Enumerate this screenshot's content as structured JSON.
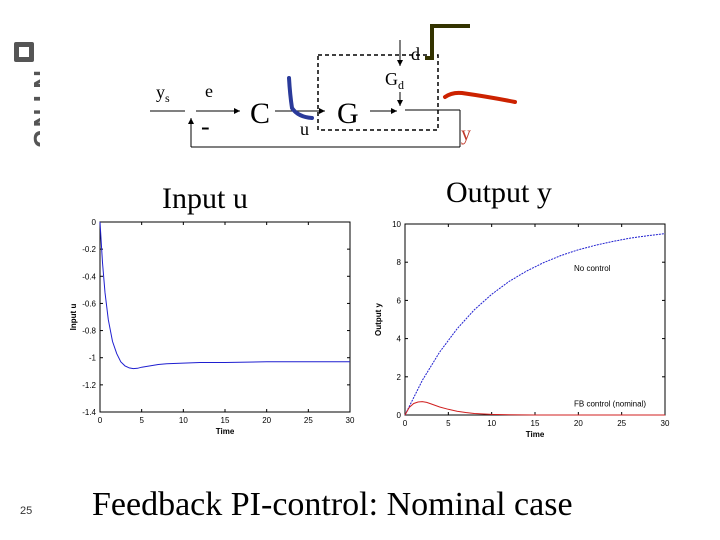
{
  "slide": {
    "number": "25",
    "title": "Feedback PI-control: Nominal case",
    "logo_text": "NTNU"
  },
  "diagram": {
    "ys": "y",
    "ys_sub": "s",
    "e": "e",
    "minus": "-",
    "controller": "C",
    "u": "u",
    "plant": "G",
    "disturbance_block": "G",
    "disturbance_block_sub": "d",
    "d": "d",
    "y": "y"
  },
  "panels": {
    "left_title": "Input u",
    "right_title": "Output y"
  },
  "chart_data": [
    {
      "type": "line",
      "xlabel": "Time",
      "ylabel": "Input u",
      "xlim": [
        0,
        30
      ],
      "ylim": [
        -1.4,
        0
      ],
      "xticks": [
        "0",
        "5",
        "10",
        "15",
        "20",
        "25",
        "30"
      ],
      "yticks": [
        "0",
        "-0.2",
        "-0.4",
        "-0.6",
        "-0.8",
        "-1",
        "-1.2",
        "-1.4"
      ],
      "series": [
        {
          "color": "#1f1fd0",
          "x": [
            0,
            0.3,
            0.6,
            1,
            1.5,
            2,
            2.5,
            3,
            3.5,
            4,
            4.5,
            5,
            6,
            7,
            8,
            10,
            12,
            15,
            20,
            25,
            30
          ],
          "y": [
            0,
            -0.3,
            -0.52,
            -0.72,
            -0.88,
            -0.97,
            -1.03,
            -1.06,
            -1.075,
            -1.08,
            -1.078,
            -1.07,
            -1.06,
            -1.05,
            -1.045,
            -1.04,
            -1.035,
            -1.035,
            -1.03,
            -1.03,
            -1.03
          ]
        }
      ]
    },
    {
      "type": "line",
      "xlabel": "Time",
      "ylabel": "Output y",
      "xlim": [
        0,
        30
      ],
      "ylim": [
        0,
        10
      ],
      "xticks": [
        "0",
        "5",
        "10",
        "15",
        "20",
        "25",
        "30"
      ],
      "yticks": [
        "0",
        "2",
        "4",
        "6",
        "8",
        "10"
      ],
      "annotations": [
        "No control",
        "FB control (nominal)"
      ],
      "series": [
        {
          "name": "No control",
          "color": "#1f1fd0",
          "x": [
            0,
            2,
            4,
            6,
            8,
            10,
            12,
            14,
            16,
            18,
            20,
            22,
            24,
            26,
            28,
            30
          ],
          "y": [
            0,
            1.81,
            3.3,
            4.51,
            5.51,
            6.32,
            6.99,
            7.53,
            7.98,
            8.35,
            8.65,
            8.89,
            9.09,
            9.26,
            9.39,
            9.5
          ]
        },
        {
          "name": "FB control (nominal)",
          "color": "#d01f1f",
          "x": [
            0,
            0.5,
            1,
            1.5,
            2,
            2.5,
            3,
            4,
            5,
            6,
            7,
            8,
            10,
            12,
            15,
            20,
            25,
            30
          ],
          "y": [
            0,
            0.4,
            0.6,
            0.68,
            0.7,
            0.66,
            0.58,
            0.42,
            0.3,
            0.2,
            0.13,
            0.08,
            0.03,
            0.01,
            0.0,
            0.0,
            0.0,
            0.0
          ]
        }
      ]
    }
  ]
}
